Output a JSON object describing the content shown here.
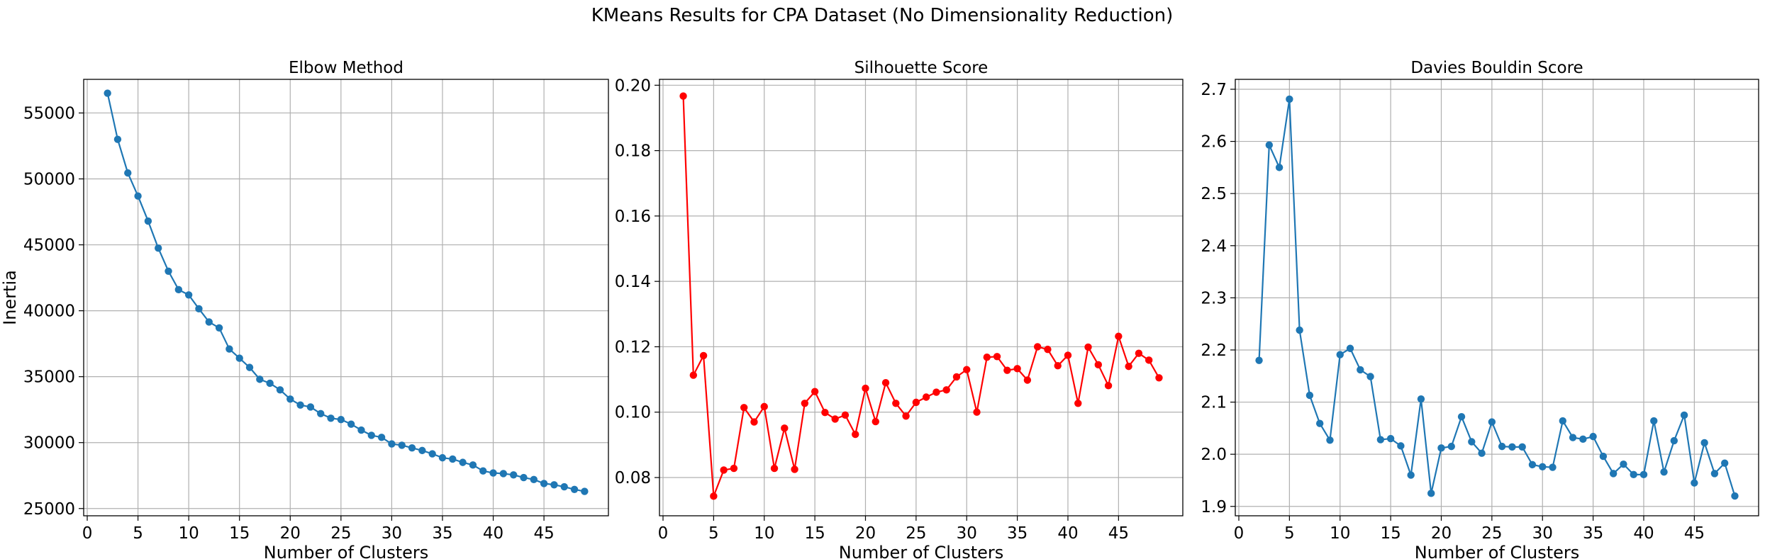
{
  "figure": {
    "title": "KMeans Results for CPA Dataset (No Dimensionality Reduction)"
  },
  "chart_data": [
    {
      "type": "line",
      "title": "Elbow Method",
      "xlabel": "Number of Clusters",
      "ylabel": "Inertia",
      "color": "#1f77b4",
      "grid": true,
      "xlim": [
        -0.35,
        51.35
      ],
      "ylim": [
        24450,
        57550
      ],
      "xticks": [
        0,
        5,
        10,
        15,
        20,
        25,
        30,
        35,
        40,
        45
      ],
      "yticks": [
        25000,
        30000,
        35000,
        40000,
        45000,
        50000,
        55000
      ],
      "x": [
        2,
        3,
        4,
        5,
        6,
        7,
        8,
        9,
        10,
        11,
        12,
        13,
        14,
        15,
        16,
        17,
        18,
        19,
        20,
        21,
        22,
        23,
        24,
        25,
        26,
        27,
        28,
        29,
        30,
        31,
        32,
        33,
        34,
        35,
        36,
        37,
        38,
        39,
        40,
        41,
        42,
        43,
        44,
        45,
        46,
        47,
        48,
        49
      ],
      "values": [
        56500,
        53000,
        50450,
        48700,
        46800,
        44750,
        43000,
        41600,
        41200,
        40150,
        39150,
        38700,
        37100,
        36400,
        35700,
        34800,
        34500,
        34000,
        33300,
        32850,
        32700,
        32200,
        31850,
        31750,
        31400,
        30950,
        30550,
        30400,
        29900,
        29800,
        29600,
        29400,
        29150,
        28850,
        28750,
        28500,
        28300,
        27850,
        27700,
        27650,
        27550,
        27350,
        27200,
        26900,
        26800,
        26650,
        26450,
        26300
      ]
    },
    {
      "type": "line",
      "title": "Silhouette Score",
      "xlabel": "Number of Clusters",
      "ylabel": "",
      "color": "#ff0000",
      "grid": true,
      "xlim": [
        -0.35,
        51.35
      ],
      "ylim": [
        0.0683,
        0.2018
      ],
      "xticks": [
        0,
        5,
        10,
        15,
        20,
        25,
        30,
        35,
        40,
        45
      ],
      "yticks": [
        0.08,
        0.1,
        0.12,
        0.14,
        0.16,
        0.18,
        0.2
      ],
      "x": [
        2,
        3,
        4,
        5,
        6,
        7,
        8,
        9,
        10,
        11,
        12,
        13,
        14,
        15,
        16,
        17,
        18,
        19,
        20,
        21,
        22,
        23,
        24,
        25,
        26,
        27,
        28,
        29,
        30,
        31,
        32,
        33,
        34,
        35,
        36,
        37,
        38,
        39,
        40,
        41,
        42,
        43,
        44,
        45,
        46,
        47,
        48,
        49
      ],
      "values": [
        0.1967,
        0.1113,
        0.1173,
        0.0743,
        0.0823,
        0.0828,
        0.1014,
        0.097,
        0.1017,
        0.0828,
        0.0951,
        0.0825,
        0.1027,
        0.1063,
        0.0999,
        0.0979,
        0.0991,
        0.0932,
        0.1073,
        0.0971,
        0.109,
        0.1027,
        0.0988,
        0.103,
        0.1046,
        0.1061,
        0.1068,
        0.1108,
        0.113,
        0.1,
        0.1168,
        0.117,
        0.1128,
        0.1133,
        0.1098,
        0.12,
        0.1192,
        0.1142,
        0.1174,
        0.1027,
        0.1199,
        0.1145,
        0.1081,
        0.1232,
        0.114,
        0.118,
        0.1159,
        0.1105
      ]
    },
    {
      "type": "line",
      "title": "Davies Bouldin Score",
      "xlabel": "Number of Clusters",
      "ylabel": "",
      "color": "#1f77b4",
      "grid": true,
      "xlim": [
        -0.35,
        51.35
      ],
      "ylim": [
        1.882,
        2.719
      ],
      "xticks": [
        0,
        5,
        10,
        15,
        20,
        25,
        30,
        35,
        40,
        45
      ],
      "yticks": [
        1.9,
        2.0,
        2.1,
        2.2,
        2.3,
        2.4,
        2.5,
        2.6,
        2.7
      ],
      "x": [
        2,
        3,
        4,
        5,
        6,
        7,
        8,
        9,
        10,
        11,
        12,
        13,
        14,
        15,
        16,
        17,
        18,
        19,
        20,
        21,
        22,
        23,
        24,
        25,
        26,
        27,
        28,
        29,
        30,
        31,
        32,
        33,
        34,
        35,
        36,
        37,
        38,
        39,
        40,
        41,
        42,
        43,
        44,
        45,
        46,
        47,
        48,
        49
      ],
      "values": [
        2.18,
        2.593,
        2.55,
        2.681,
        2.238,
        2.113,
        2.059,
        2.027,
        2.191,
        2.203,
        2.162,
        2.149,
        2.028,
        2.03,
        2.016,
        1.96,
        2.106,
        1.925,
        2.012,
        2.015,
        2.072,
        2.024,
        2.002,
        2.062,
        2.015,
        2.014,
        2.014,
        1.98,
        1.976,
        1.975,
        2.064,
        2.032,
        2.029,
        2.034,
        1.996,
        1.963,
        1.981,
        1.961,
        1.961,
        2.064,
        1.966,
        2.026,
        2.075,
        1.945,
        2.022,
        1.963,
        1.983,
        1.92
      ]
    }
  ]
}
